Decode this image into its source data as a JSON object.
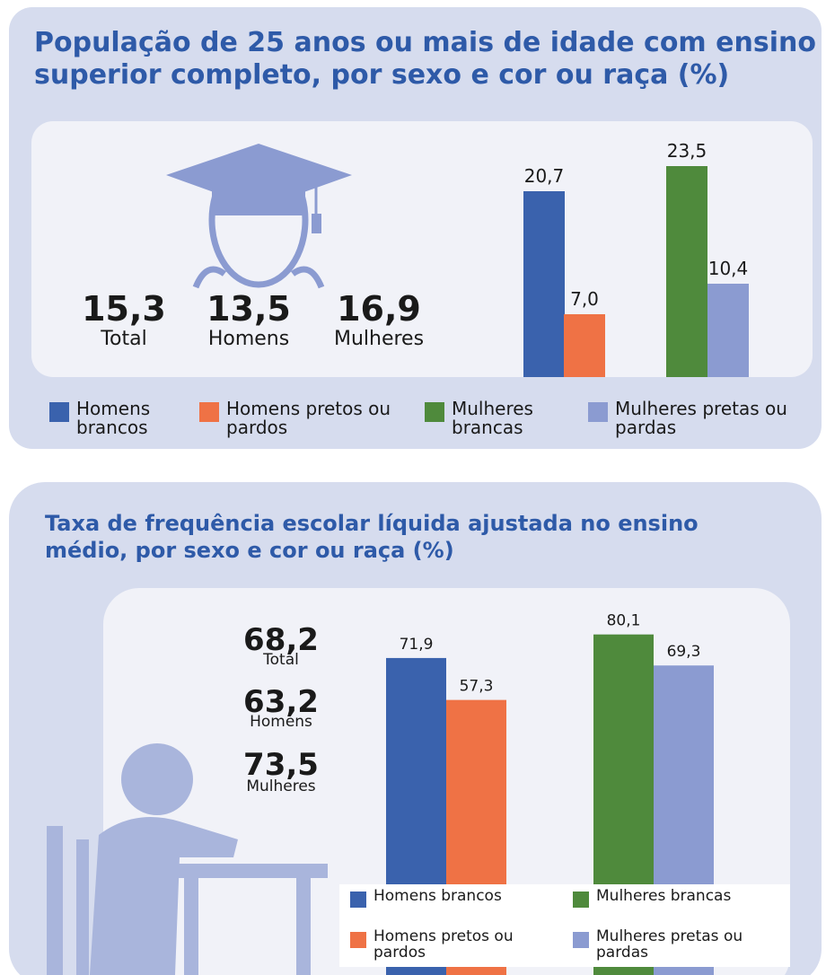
{
  "chart_data": [
    {
      "type": "bar",
      "title": "População de 25 anos ou mais de idade com ensino superior completo, por sexo e cor ou raça (%)",
      "stats": [
        {
          "value": "15,3",
          "label": "Total"
        },
        {
          "value": "13,5",
          "label": "Homens"
        },
        {
          "value": "16,9",
          "label": "Mulheres"
        }
      ],
      "series": [
        {
          "name": "Homens brancos",
          "color": "#3a62ad",
          "values": [
            20.7
          ],
          "value_labels": [
            "20,7"
          ]
        },
        {
          "name": "Homens pretos ou pardos",
          "color": "#ef7245",
          "values": [
            7.0
          ],
          "value_labels": [
            "7,0"
          ]
        },
        {
          "name": "Mulheres brancas",
          "color": "#4f8a3c",
          "values": [
            23.5
          ],
          "value_labels": [
            "23,5"
          ]
        },
        {
          "name": "Mulheres pretas ou pardas",
          "color": "#8b9bd1",
          "values": [
            10.4
          ],
          "value_labels": [
            "10,4"
          ]
        }
      ]
    },
    {
      "type": "bar",
      "title": "Taxa de frequência escolar líquida ajustada no ensino médio, por sexo e cor ou raça (%)",
      "stats": [
        {
          "value": "68,2",
          "label": "Total"
        },
        {
          "value": "63,2",
          "label": "Homens"
        },
        {
          "value": "73,5",
          "label": "Mulheres"
        }
      ],
      "series": [
        {
          "name": "Homens brancos",
          "color": "#3a62ad",
          "values": [
            71.9
          ],
          "value_labels": [
            "71,9"
          ]
        },
        {
          "name": "Homens pretos ou pardos",
          "color": "#ef7245",
          "values": [
            57.3
          ],
          "value_labels": [
            "57,3"
          ]
        },
        {
          "name": "Mulheres brancas",
          "color": "#4f8a3c",
          "values": [
            80.1
          ],
          "value_labels": [
            "80,1"
          ]
        },
        {
          "name": "Mulheres pretas ou pardas",
          "color": "#8b9bd1",
          "values": [
            69.3
          ],
          "value_labels": [
            "69,3"
          ]
        }
      ]
    }
  ]
}
